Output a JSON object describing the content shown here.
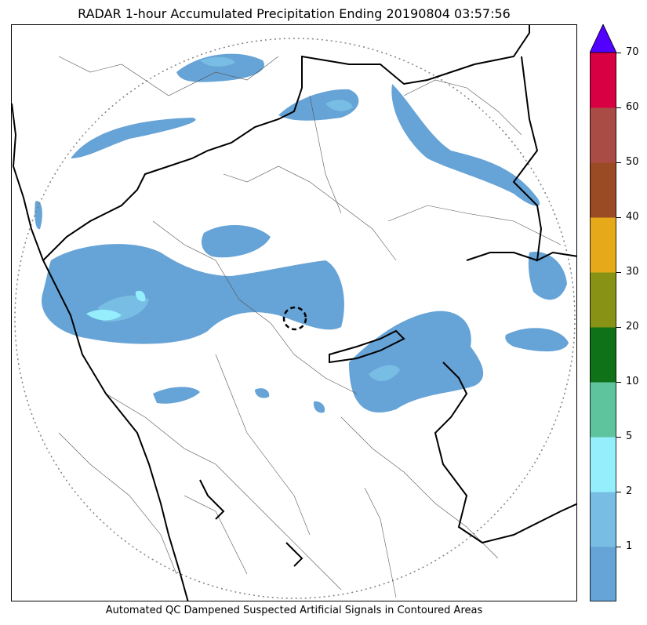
{
  "title": "RADAR 1-hour Accumulated Precipitation Ending 20190804 03:57:56",
  "footer_note": "Automated QC Dampened Suspected Artificial Signals in Contoured Areas",
  "colorbar": {
    "extend": "max",
    "over_color": "#5200ff",
    "bins": [
      {
        "label": "",
        "color": "#66a3d6"
      },
      {
        "label": "1",
        "color": "#78bde3"
      },
      {
        "label": "2",
        "color": "#95eefc"
      },
      {
        "label": "5",
        "color": "#5ec49e"
      },
      {
        "label": "10",
        "color": "#0f7118"
      },
      {
        "label": "20",
        "color": "#889214"
      },
      {
        "label": "30",
        "color": "#e6a91a"
      },
      {
        "label": "40",
        "color": "#9b4b24"
      },
      {
        "label": "50",
        "color": "#a84c45"
      },
      {
        "label": "60",
        "color": "#d80042"
      },
      {
        "label": "70",
        "color": ""
      }
    ]
  },
  "colors": {
    "light_rain": "#66a3d6",
    "moderate_rain": "#78bde3",
    "heavy_rain": "#95eefc",
    "coastline": "#000000",
    "district_lines": "#555555",
    "range_ring": "#808080"
  }
}
